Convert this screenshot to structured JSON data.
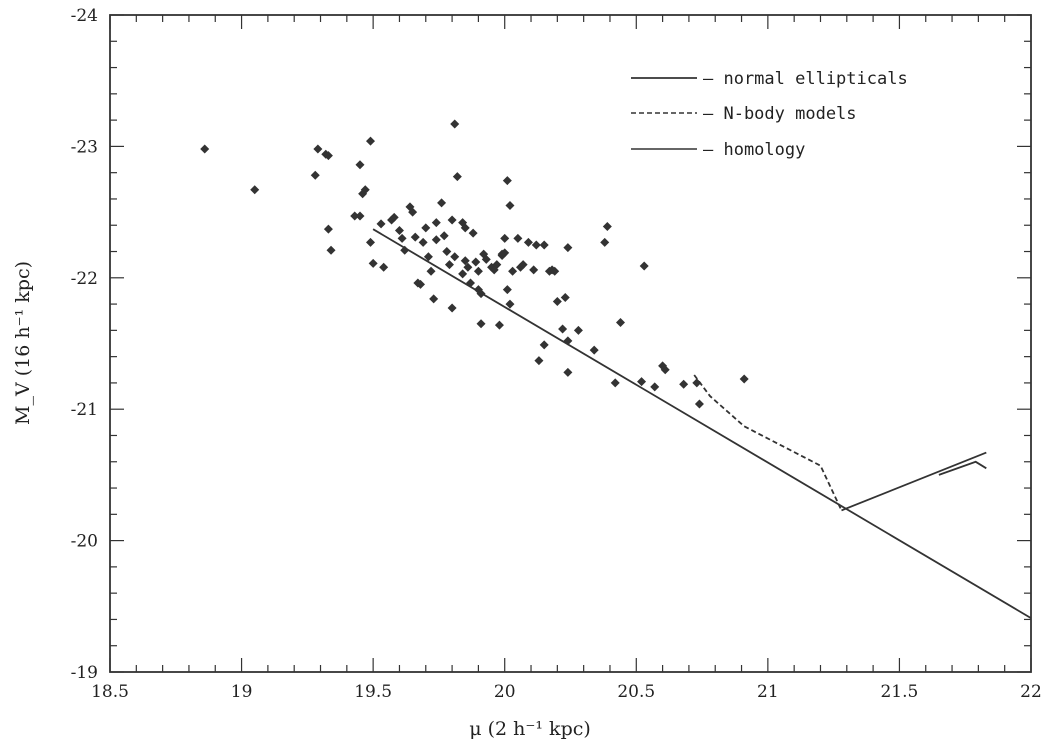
{
  "chart_data": {
    "type": "scatter",
    "title": "",
    "xlabel": "μ (2 h⁻¹ kpc)",
    "ylabel": "M_V (16 h⁻¹ kpc)",
    "xlim": [
      18.5,
      22
    ],
    "ylim": [
      -24,
      -19
    ],
    "y_inverted": true,
    "grid": false,
    "xticks": [
      "18.5",
      "19",
      "19.5",
      "20",
      "20.5",
      "21",
      "21.5",
      "22"
    ],
    "yticks": [
      "-24",
      "-23",
      "-22",
      "-21",
      "-20",
      "-19"
    ],
    "legend_position": "top-right",
    "legend": [
      {
        "style": "solid",
        "label": "– normal ellipticals"
      },
      {
        "style": "dashed",
        "label": "– N-body models"
      },
      {
        "style": "solid-thin",
        "label": "– homology"
      }
    ],
    "points": [
      [
        18.86,
        -22.98
      ],
      [
        19.05,
        -22.67
      ],
      [
        19.28,
        -22.78
      ],
      [
        19.29,
        -22.98
      ],
      [
        19.32,
        -22.94
      ],
      [
        19.33,
        -22.93
      ],
      [
        19.33,
        -22.37
      ],
      [
        19.34,
        -22.21
      ],
      [
        19.43,
        -22.47
      ],
      [
        19.45,
        -22.47
      ],
      [
        19.45,
        -22.86
      ],
      [
        19.46,
        -22.64
      ],
      [
        19.47,
        -22.67
      ],
      [
        19.49,
        -23.04
      ],
      [
        19.49,
        -22.27
      ],
      [
        19.5,
        -22.11
      ],
      [
        19.53,
        -22.41
      ],
      [
        19.54,
        -22.08
      ],
      [
        19.57,
        -22.44
      ],
      [
        19.58,
        -22.46
      ],
      [
        19.6,
        -22.36
      ],
      [
        19.61,
        -22.3
      ],
      [
        19.62,
        -22.21
      ],
      [
        19.64,
        -22.54
      ],
      [
        19.65,
        -22.5
      ],
      [
        19.66,
        -22.31
      ],
      [
        19.67,
        -21.96
      ],
      [
        19.68,
        -21.95
      ],
      [
        19.69,
        -22.27
      ],
      [
        19.7,
        -22.38
      ],
      [
        19.71,
        -22.16
      ],
      [
        19.72,
        -22.05
      ],
      [
        19.73,
        -21.84
      ],
      [
        19.74,
        -22.29
      ],
      [
        19.74,
        -22.42
      ],
      [
        19.76,
        -22.57
      ],
      [
        19.77,
        -22.32
      ],
      [
        19.78,
        -22.2
      ],
      [
        19.79,
        -22.1
      ],
      [
        19.8,
        -21.77
      ],
      [
        19.8,
        -22.44
      ],
      [
        19.81,
        -23.17
      ],
      [
        19.81,
        -22.16
      ],
      [
        19.82,
        -22.77
      ],
      [
        19.84,
        -22.03
      ],
      [
        19.84,
        -22.42
      ],
      [
        19.85,
        -22.38
      ],
      [
        19.85,
        -22.13
      ],
      [
        19.86,
        -22.08
      ],
      [
        19.87,
        -21.96
      ],
      [
        19.88,
        -22.34
      ],
      [
        19.89,
        -22.12
      ],
      [
        19.9,
        -22.05
      ],
      [
        19.9,
        -21.91
      ],
      [
        19.91,
        -21.88
      ],
      [
        19.91,
        -21.65
      ],
      [
        19.92,
        -22.18
      ],
      [
        19.93,
        -22.14
      ],
      [
        19.95,
        -22.08
      ],
      [
        19.96,
        -22.06
      ],
      [
        19.97,
        -22.1
      ],
      [
        19.98,
        -21.64
      ],
      [
        19.99,
        -22.18
      ],
      [
        19.99,
        -22.17
      ],
      [
        20.0,
        -22.3
      ],
      [
        20.0,
        -22.19
      ],
      [
        20.01,
        -22.74
      ],
      [
        20.01,
        -21.91
      ],
      [
        20.02,
        -22.55
      ],
      [
        20.02,
        -21.8
      ],
      [
        20.03,
        -22.05
      ],
      [
        20.05,
        -22.3
      ],
      [
        20.06,
        -22.08
      ],
      [
        20.07,
        -22.1
      ],
      [
        20.09,
        -22.27
      ],
      [
        20.11,
        -22.06
      ],
      [
        20.12,
        -22.25
      ],
      [
        20.13,
        -21.37
      ],
      [
        20.15,
        -22.25
      ],
      [
        20.15,
        -21.49
      ],
      [
        20.17,
        -22.05
      ],
      [
        20.18,
        -22.06
      ],
      [
        20.19,
        -22.05
      ],
      [
        20.2,
        -21.82
      ],
      [
        20.22,
        -21.61
      ],
      [
        20.23,
        -21.85
      ],
      [
        20.24,
        -22.23
      ],
      [
        20.24,
        -21.28
      ],
      [
        20.24,
        -21.52
      ],
      [
        20.28,
        -21.6
      ],
      [
        20.34,
        -21.45
      ],
      [
        20.38,
        -22.27
      ],
      [
        20.39,
        -22.39
      ],
      [
        20.42,
        -21.2
      ],
      [
        20.44,
        -21.66
      ],
      [
        20.52,
        -21.21
      ],
      [
        20.53,
        -22.09
      ],
      [
        20.57,
        -21.17
      ],
      [
        20.6,
        -21.33
      ],
      [
        20.61,
        -21.3
      ],
      [
        20.68,
        -21.19
      ],
      [
        20.73,
        -21.2
      ],
      [
        20.74,
        -21.04
      ],
      [
        20.91,
        -21.23
      ]
    ],
    "lines": [
      {
        "name": "normal ellipticals",
        "style": "solid",
        "x": [
          19.5,
          22.0
        ],
        "y": [
          -22.37,
          -19.41
        ]
      },
      {
        "name": "N-body models",
        "style": "dashed",
        "x": [
          20.72,
          20.78,
          20.91,
          21.2,
          21.28
        ],
        "y": [
          -21.26,
          -21.1,
          -20.87,
          -20.57,
          -20.23
        ]
      },
      {
        "name": "homology",
        "style": "solid",
        "x": [
          21.28,
          21.83
        ],
        "y": [
          -20.23,
          -20.67
        ]
      },
      {
        "name": "homology",
        "style": "solid",
        "x": [
          21.65,
          21.79,
          21.83
        ],
        "y": [
          -20.5,
          -20.6,
          -20.55
        ]
      }
    ]
  }
}
